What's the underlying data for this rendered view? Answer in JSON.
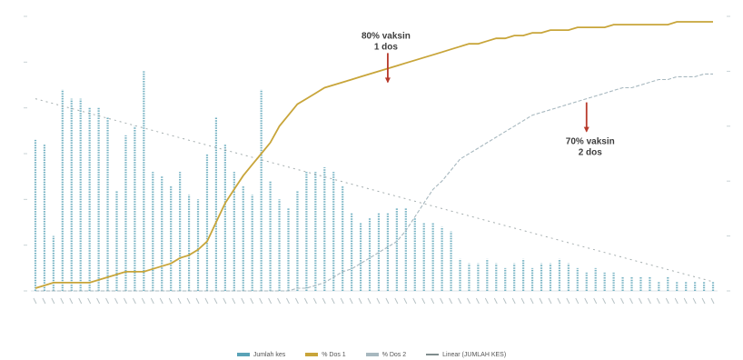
{
  "chart_data": {
    "type": "bar",
    "left_axis": {
      "range": [
        0,
        6
      ],
      "ticks": [
        0,
        1,
        2,
        3,
        4,
        5,
        6
      ],
      "tick_labels_legible": false
    },
    "right_axis": {
      "range": [
        0,
        100
      ],
      "ticks": [
        0,
        20,
        40,
        60,
        80,
        100
      ],
      "tick_labels_legible": false
    },
    "grid": false,
    "legend_position": "bottom",
    "bar_values": [
      3.3,
      3.2,
      1.2,
      4.4,
      4.2,
      4.2,
      4.0,
      4.0,
      3.8,
      2.2,
      3.4,
      3.6,
      4.8,
      2.6,
      2.5,
      2.3,
      2.6,
      2.1,
      2.0,
      3.0,
      3.8,
      3.2,
      2.6,
      2.3,
      2.1,
      4.4,
      2.4,
      2.0,
      1.8,
      2.2,
      2.6,
      2.6,
      2.7,
      2.6,
      2.3,
      1.7,
      1.5,
      1.6,
      1.7,
      1.7,
      1.8,
      1.8,
      1.6,
      1.5,
      1.5,
      1.4,
      1.3,
      0.7,
      0.6,
      0.6,
      0.7,
      0.6,
      0.5,
      0.6,
      0.7,
      0.5,
      0.6,
      0.6,
      0.7,
      0.6,
      0.5,
      0.4,
      0.5,
      0.4,
      0.4,
      0.3,
      0.3,
      0.3,
      0.3,
      0.2,
      0.3,
      0.2,
      0.2,
      0.2,
      0.2,
      0.2
    ],
    "series": [
      {
        "name": "% Dos 1",
        "color": "#c8a53a",
        "values": [
          1,
          2,
          3,
          3,
          3,
          3,
          3,
          4,
          5,
          6,
          7,
          7,
          7,
          8,
          9,
          10,
          12,
          13,
          15,
          18,
          25,
          32,
          37,
          42,
          46,
          50,
          54,
          60,
          64,
          68,
          70,
          72,
          74,
          75,
          76,
          77,
          78,
          79,
          80,
          81,
          82,
          83,
          84,
          85,
          86,
          87,
          88,
          89,
          90,
          90,
          91,
          92,
          92,
          93,
          93,
          94,
          94,
          95,
          95,
          95,
          96,
          96,
          96,
          96,
          97,
          97,
          97,
          97,
          97,
          97,
          97,
          98,
          98,
          98,
          98,
          98
        ]
      },
      {
        "name": "% Dos 2",
        "color": "#a7b8bf",
        "values": [
          0,
          0,
          0,
          0,
          0,
          0,
          0,
          0,
          0,
          0,
          0,
          0,
          0,
          0,
          0,
          0,
          0,
          0,
          0,
          0,
          0,
          0,
          0,
          0,
          0,
          0,
          0,
          0,
          0,
          1,
          1,
          2,
          3,
          5,
          7,
          8,
          10,
          12,
          14,
          16,
          18,
          22,
          27,
          32,
          37,
          40,
          44,
          48,
          50,
          52,
          54,
          56,
          58,
          60,
          62,
          64,
          65,
          66,
          67,
          68,
          69,
          70,
          71,
          72,
          73,
          74,
          74,
          75,
          76,
          77,
          77,
          78,
          78,
          78,
          79,
          79
        ]
      }
    ],
    "trendline": {
      "name": "Linear (JUMLAH KES)",
      "color": "#7f8c8d",
      "start": 4.2,
      "end": 0.2
    },
    "annotations": [
      {
        "text": [
          "80% vaksin",
          "1 dos"
        ],
        "at_index": 39,
        "at_value": 80
      },
      {
        "text": [
          "70% vaksin",
          "2 dos"
        ],
        "at_index": 61,
        "at_value": 70
      }
    ],
    "legend": [
      {
        "label": "Jumlah kes",
        "color": "#5aa3b7"
      },
      {
        "label": "% Dos 1",
        "color": "#c8a53a"
      },
      {
        "label": "% Dos 2",
        "color": "#a7b8bf"
      },
      {
        "label": "Linear (JUMLAH KES)",
        "color": "#7f8c8d"
      }
    ]
  }
}
